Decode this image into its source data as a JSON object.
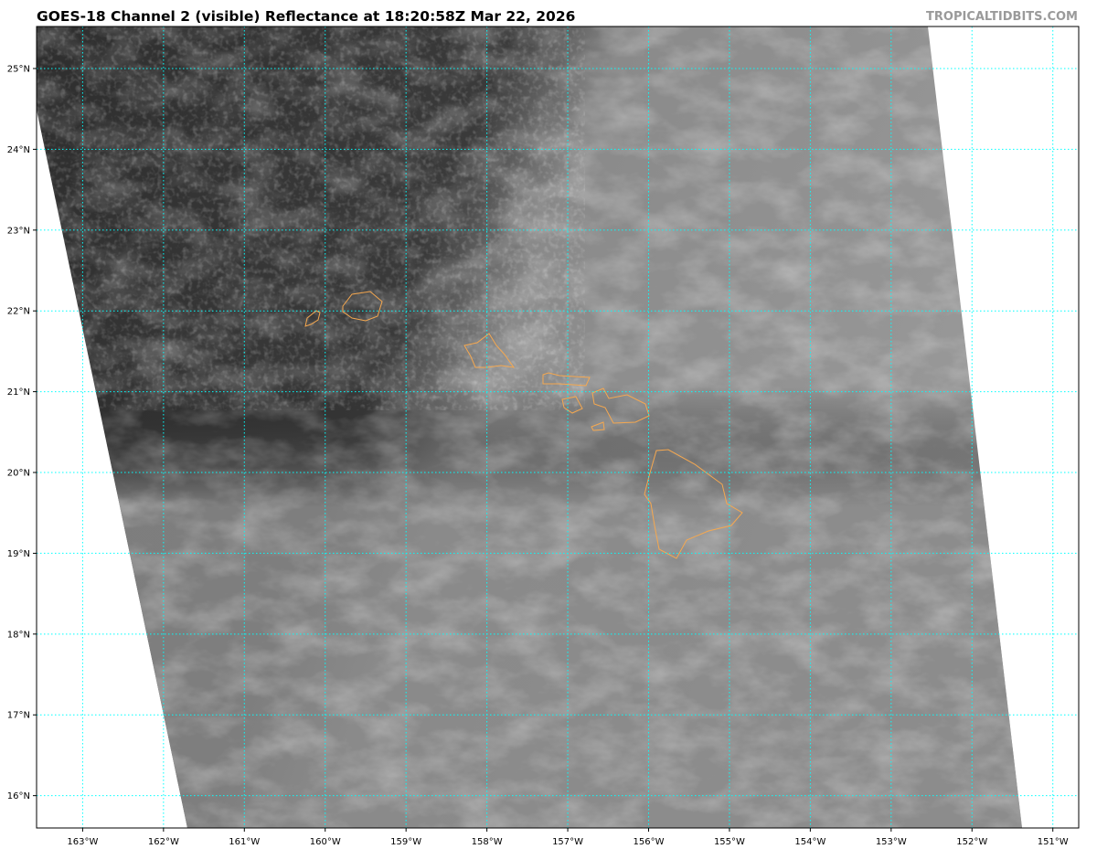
{
  "title": "GOES-18 Channel 2 (visible) Reflectance at 18:20:58Z Mar 22, 2026",
  "watermark": "TROPICALTIDBITS.COM",
  "map": {
    "lon_range": [
      -163.57,
      -150.68
    ],
    "lat_range": [
      15.6,
      25.52
    ],
    "lon_ticks": [
      {
        "value": -163,
        "label": "163°W"
      },
      {
        "value": -162,
        "label": "162°W"
      },
      {
        "value": -161,
        "label": "161°W"
      },
      {
        "value": -160,
        "label": "160°W"
      },
      {
        "value": -159,
        "label": "159°W"
      },
      {
        "value": -158,
        "label": "158°W"
      },
      {
        "value": -157,
        "label": "157°W"
      },
      {
        "value": -156,
        "label": "156°W"
      },
      {
        "value": -155,
        "label": "155°W"
      },
      {
        "value": -154,
        "label": "154°W"
      },
      {
        "value": -153,
        "label": "153°W"
      },
      {
        "value": -152,
        "label": "152°W"
      },
      {
        "value": -151,
        "label": "151°W"
      }
    ],
    "lat_ticks": [
      {
        "value": 25,
        "label": "25°N"
      },
      {
        "value": 24,
        "label": "24°N"
      },
      {
        "value": 23,
        "label": "23°N"
      },
      {
        "value": 22,
        "label": "22°N"
      },
      {
        "value": 21,
        "label": "21°N"
      },
      {
        "value": 20,
        "label": "20°N"
      },
      {
        "value": 19,
        "label": "19°N"
      },
      {
        "value": 18,
        "label": "18°N"
      },
      {
        "value": 17,
        "label": "17°N"
      },
      {
        "value": 16,
        "label": "16°N"
      }
    ],
    "gridline_color": "#00ffff",
    "coastline_color": "#f5a850",
    "imagery": "grayscale visible satellite reflectance"
  }
}
